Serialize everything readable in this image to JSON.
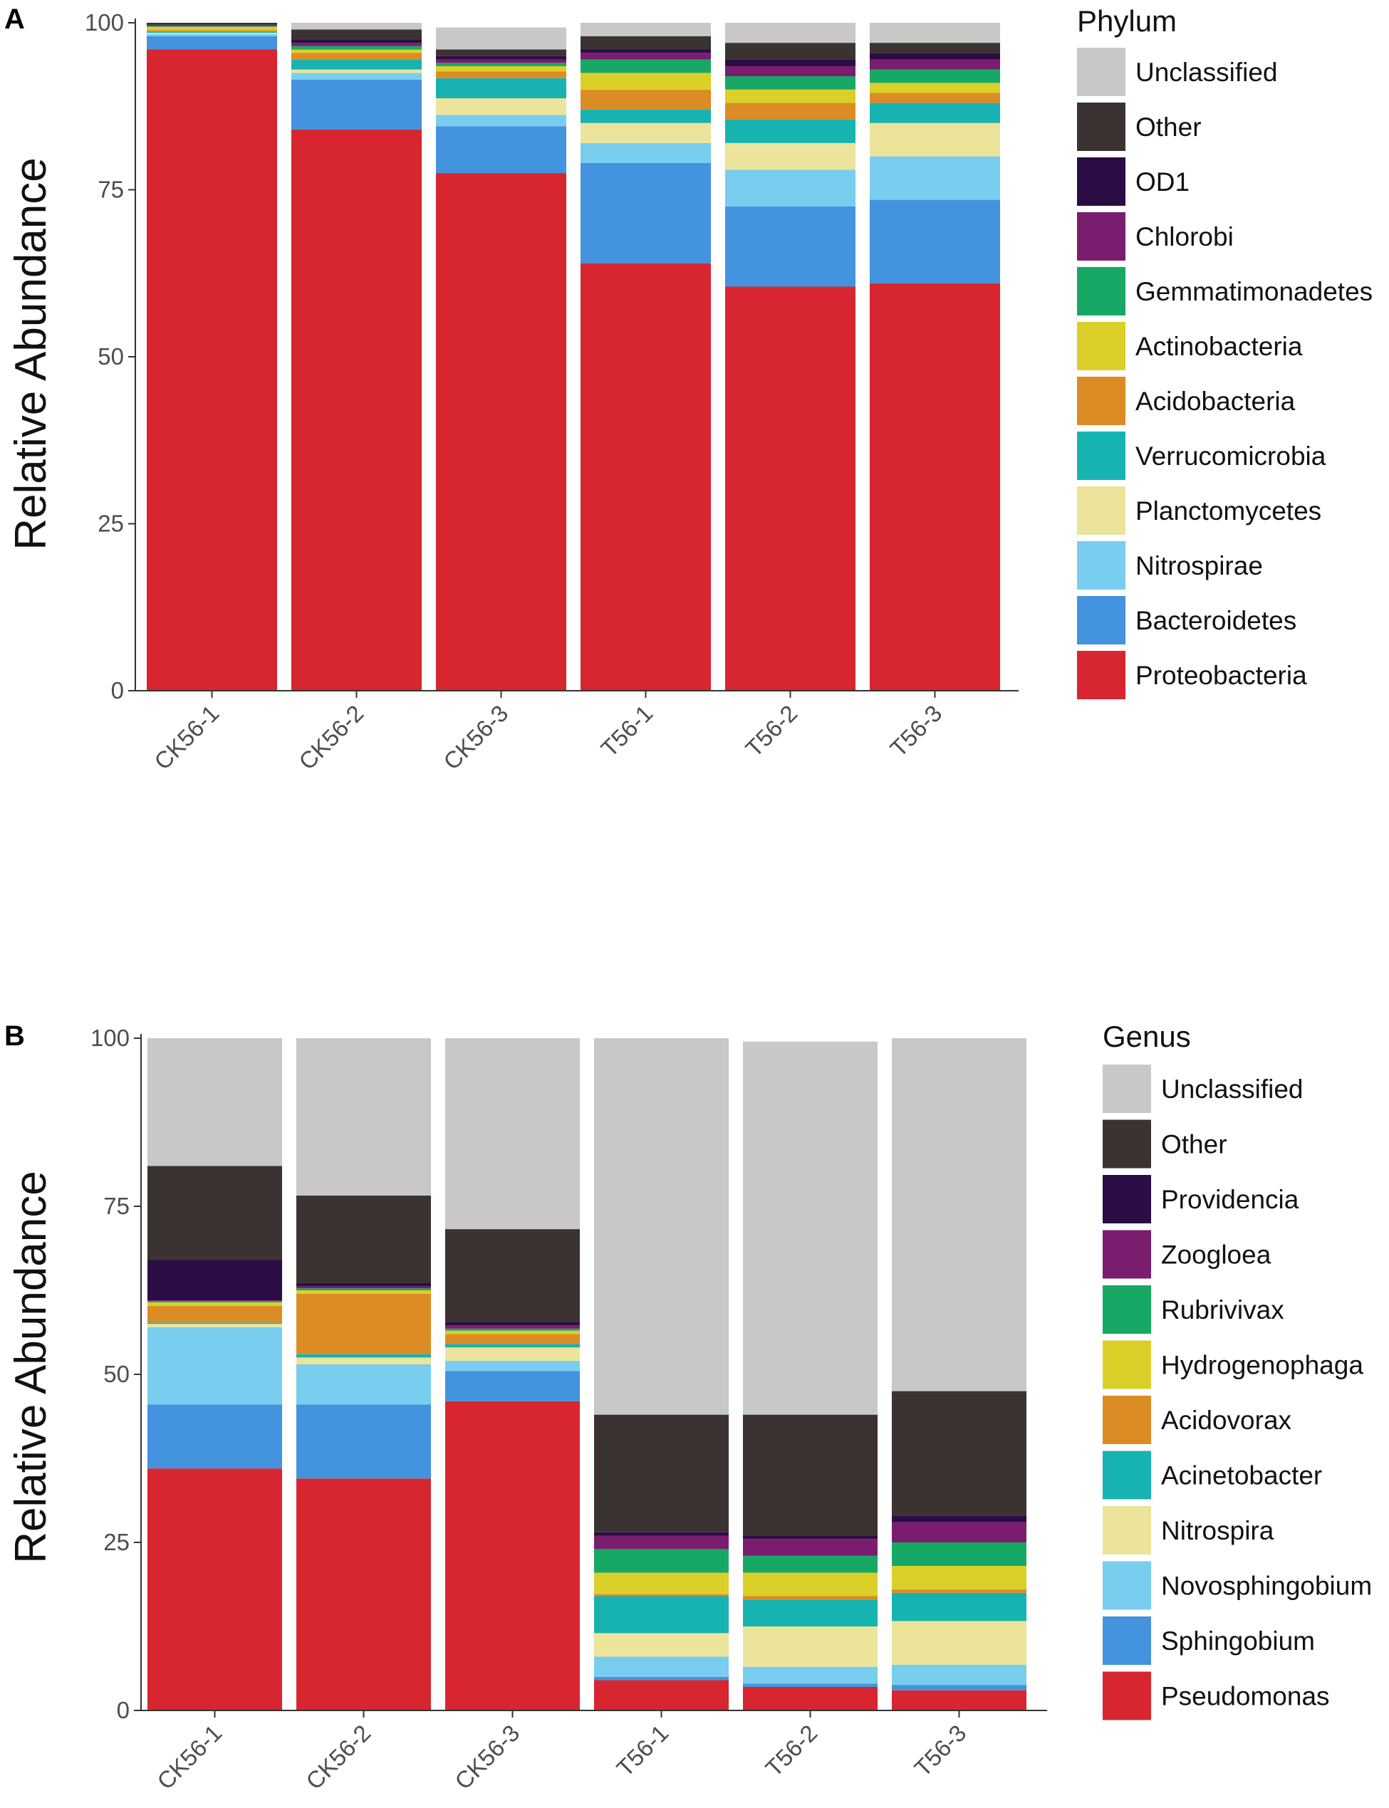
{
  "chart_data": [
    {
      "panel": "A",
      "type": "bar",
      "stacked": true,
      "title": "",
      "xlabel": "",
      "ylabel": "Relative Abundance",
      "ylim": [
        0,
        100
      ],
      "yticks": [
        0,
        25,
        50,
        75,
        100
      ],
      "legend_title": "Phylum",
      "legend_position": "right",
      "grid": false,
      "categories": [
        "CK56-1",
        "CK56-2",
        "CK56-3",
        "T56-1",
        "T56-2",
        "T56-3"
      ],
      "series": [
        {
          "name": "Proteobacteria",
          "color": "#D7262F",
          "values": [
            96.0,
            84.0,
            77.5,
            64.0,
            60.5,
            61.0
          ]
        },
        {
          "name": "Bacteroidetes",
          "color": "#4393DE",
          "values": [
            2.0,
            7.5,
            7.0,
            15.0,
            12.0,
            12.5
          ]
        },
        {
          "name": "Nitrospirae",
          "color": "#79CDEE",
          "values": [
            0.3,
            1.0,
            1.7,
            3.0,
            5.5,
            6.5
          ]
        },
        {
          "name": "Planctomycetes",
          "color": "#EBE49A",
          "values": [
            0.2,
            0.5,
            2.5,
            3.0,
            4.0,
            5.0
          ]
        },
        {
          "name": "Verrucomicrobia",
          "color": "#17B3B0",
          "values": [
            0.2,
            1.5,
            3.0,
            2.0,
            3.5,
            3.0
          ]
        },
        {
          "name": "Acidobacteria",
          "color": "#DC8C24",
          "values": [
            0.2,
            1.0,
            1.0,
            3.0,
            2.5,
            1.5
          ]
        },
        {
          "name": "Actinobacteria",
          "color": "#DBCF2A",
          "values": [
            0.5,
            0.5,
            0.8,
            2.5,
            2.0,
            1.5
          ]
        },
        {
          "name": "Gemmatimonadetes",
          "color": "#18A865",
          "values": [
            0.1,
            0.5,
            0.5,
            2.0,
            2.0,
            2.0
          ]
        },
        {
          "name": "Chlorobi",
          "color": "#7B1D6E",
          "values": [
            0.1,
            0.5,
            0.5,
            1.0,
            1.5,
            1.5
          ]
        },
        {
          "name": "OD1",
          "color": "#2B0D45",
          "values": [
            0.1,
            0.5,
            0.5,
            0.5,
            1.0,
            1.0
          ]
        },
        {
          "name": "Other",
          "color": "#3A3331",
          "values": [
            0.3,
            1.5,
            1.0,
            2.0,
            2.5,
            1.5
          ]
        },
        {
          "name": "Unclassified",
          "color": "#C8C8C8",
          "values": [
            0.0,
            1.0,
            3.3,
            2.0,
            3.0,
            3.0
          ]
        }
      ]
    },
    {
      "panel": "B",
      "type": "bar",
      "stacked": true,
      "title": "",
      "xlabel": "",
      "ylabel": "Relative Abundance",
      "ylim": [
        0,
        100
      ],
      "yticks": [
        0,
        25,
        50,
        75,
        100
      ],
      "legend_title": "Genus",
      "legend_position": "right",
      "grid": false,
      "categories": [
        "CK56-1",
        "CK56-2",
        "CK56-3",
        "T56-1",
        "T56-2",
        "T56-3"
      ],
      "series": [
        {
          "name": "Pseudomonas",
          "color": "#D7262F",
          "values": [
            36.0,
            34.5,
            46.0,
            4.5,
            3.5,
            3.0
          ]
        },
        {
          "name": "Sphingobium",
          "color": "#4393DE",
          "values": [
            9.5,
            11.0,
            4.5,
            0.5,
            0.5,
            0.8
          ]
        },
        {
          "name": "Novosphingobium",
          "color": "#79CDEE",
          "values": [
            11.5,
            6.0,
            1.5,
            3.0,
            2.5,
            3.0
          ]
        },
        {
          "name": "Nitrospira",
          "color": "#EBE49A",
          "values": [
            0.5,
            1.0,
            2.0,
            3.5,
            6.0,
            6.5
          ]
        },
        {
          "name": "Acinetobacter",
          "color": "#17B3B0",
          "values": [
            0.2,
            0.5,
            0.5,
            5.5,
            4.0,
            4.2
          ]
        },
        {
          "name": "Acidovorax",
          "color": "#DC8C24",
          "values": [
            2.5,
            9.0,
            1.5,
            0.3,
            0.5,
            0.5
          ]
        },
        {
          "name": "Hydrogenophaga",
          "color": "#DBCF2A",
          "values": [
            0.5,
            0.5,
            0.5,
            3.2,
            3.5,
            3.5
          ]
        },
        {
          "name": "Rubrivivax",
          "color": "#18A865",
          "values": [
            0.2,
            0.3,
            0.3,
            3.5,
            2.5,
            3.5
          ]
        },
        {
          "name": "Zoogloea",
          "color": "#7B1D6E",
          "values": [
            0.1,
            0.3,
            0.5,
            2.0,
            2.5,
            3.0
          ]
        },
        {
          "name": "Providencia",
          "color": "#2B0D45",
          "values": [
            6.0,
            0.5,
            0.5,
            0.5,
            0.5,
            1.0
          ]
        },
        {
          "name": "Other",
          "color": "#3A3331",
          "values": [
            14.0,
            13.0,
            13.8,
            17.5,
            18.0,
            18.5
          ]
        },
        {
          "name": "Unclassified",
          "color": "#C8C8C8",
          "values": [
            19.0,
            23.4,
            28.4,
            56.0,
            55.5,
            52.5
          ]
        }
      ]
    }
  ]
}
